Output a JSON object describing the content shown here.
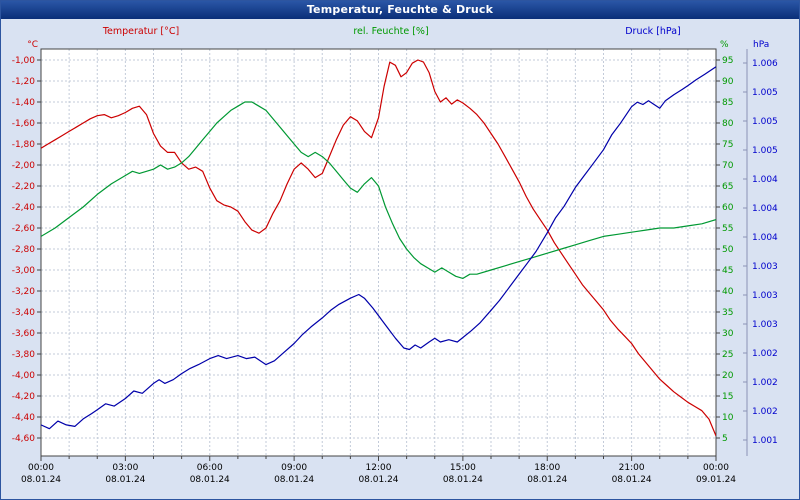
{
  "window": {
    "title": "Temperatur, Feuchte & Druck"
  },
  "chart_data": {
    "type": "line",
    "title": "Temperatur, Feuchte & Druck",
    "xlabel": "",
    "ylabel": "",
    "grid": true,
    "legend_position": "top",
    "series_headers": [
      {
        "label": "Temperatur [°C]",
        "color": "#cc0000"
      },
      {
        "label": "rel. Feuchte [%]",
        "color": "#009900"
      },
      {
        "label": "Druck [hPa]",
        "color": "#0000cc"
      }
    ],
    "axes": {
      "left": {
        "unit": "°C",
        "color": "#cc0000",
        "tick_top_value": -1.0,
        "tick_step": 0.2,
        "ticks": [
          "-1,00",
          "-1,20",
          "-1,40",
          "-1,60",
          "-1,80",
          "-2,00",
          "-2,20",
          "-2,40",
          "-2,60",
          "-2,80",
          "-3,00",
          "-3,20",
          "-3,40",
          "-3,60",
          "-3,80",
          "-4,00",
          "-4,20",
          "-4,40",
          "-4,60"
        ]
      },
      "humidity": {
        "unit": "%",
        "color": "#009900",
        "tick_top_value": 95,
        "tick_step": 5,
        "ticks": [
          "95",
          "90",
          "85",
          "80",
          "75",
          "70",
          "65",
          "60",
          "55",
          "50",
          "45",
          "40",
          "35",
          "30",
          "25",
          "20",
          "15",
          "10",
          "5"
        ]
      },
      "pressure": {
        "unit": "hPa",
        "color": "#0000cc",
        "top_value": 1006.0,
        "bottom_value": 1001.0,
        "labels": [
          "1.006",
          "1.005",
          "1.005",
          "1.005",
          "1.004",
          "1.004",
          "1.004",
          "1.003",
          "1.003",
          "1.003",
          "1.002",
          "1.002",
          "1.002",
          "1.001"
        ]
      },
      "x": {
        "hours_total": 24,
        "gridline_every_hours": 1,
        "label_every_hours": 3,
        "times": [
          "00:00",
          "03:00",
          "06:00",
          "09:00",
          "12:00",
          "15:00",
          "18:00",
          "21:00",
          "00:00"
        ],
        "dates": [
          "08.01.24",
          "08.01.24",
          "08.01.24",
          "08.01.24",
          "08.01.24",
          "08.01.24",
          "08.01.24",
          "08.01.24",
          "09.01.24"
        ]
      }
    },
    "series": [
      {
        "name": "Temperatur",
        "axis": "left",
        "color": "#cc0000",
        "points": [
          [
            0,
            -1.84
          ],
          [
            0.25,
            -1.8
          ],
          [
            0.5,
            -1.76
          ],
          [
            0.75,
            -1.72
          ],
          [
            1,
            -1.68
          ],
          [
            1.25,
            -1.64
          ],
          [
            1.5,
            -1.6
          ],
          [
            1.75,
            -1.56
          ],
          [
            2,
            -1.53
          ],
          [
            2.25,
            -1.52
          ],
          [
            2.5,
            -1.55
          ],
          [
            2.75,
            -1.53
          ],
          [
            3,
            -1.5
          ],
          [
            3.25,
            -1.46
          ],
          [
            3.5,
            -1.44
          ],
          [
            3.75,
            -1.52
          ],
          [
            4,
            -1.7
          ],
          [
            4.25,
            -1.82
          ],
          [
            4.5,
            -1.88
          ],
          [
            4.75,
            -1.88
          ],
          [
            5,
            -1.98
          ],
          [
            5.25,
            -2.04
          ],
          [
            5.5,
            -2.02
          ],
          [
            5.75,
            -2.06
          ],
          [
            6,
            -2.22
          ],
          [
            6.25,
            -2.34
          ],
          [
            6.5,
            -2.38
          ],
          [
            6.75,
            -2.4
          ],
          [
            7,
            -2.44
          ],
          [
            7.25,
            -2.54
          ],
          [
            7.5,
            -2.62
          ],
          [
            7.75,
            -2.65
          ],
          [
            8,
            -2.6
          ],
          [
            8.25,
            -2.46
          ],
          [
            8.5,
            -2.34
          ],
          [
            8.75,
            -2.18
          ],
          [
            9,
            -2.04
          ],
          [
            9.25,
            -1.98
          ],
          [
            9.5,
            -2.04
          ],
          [
            9.75,
            -2.12
          ],
          [
            10,
            -2.08
          ],
          [
            10.25,
            -1.92
          ],
          [
            10.5,
            -1.76
          ],
          [
            10.75,
            -1.62
          ],
          [
            11,
            -1.54
          ],
          [
            11.25,
            -1.58
          ],
          [
            11.5,
            -1.68
          ],
          [
            11.75,
            -1.74
          ],
          [
            12,
            -1.55
          ],
          [
            12.2,
            -1.25
          ],
          [
            12.4,
            -1.02
          ],
          [
            12.6,
            -1.05
          ],
          [
            12.8,
            -1.16
          ],
          [
            13,
            -1.12
          ],
          [
            13.2,
            -1.03
          ],
          [
            13.4,
            -1.0
          ],
          [
            13.6,
            -1.02
          ],
          [
            13.8,
            -1.12
          ],
          [
            14,
            -1.3
          ],
          [
            14.2,
            -1.4
          ],
          [
            14.4,
            -1.36
          ],
          [
            14.6,
            -1.42
          ],
          [
            14.8,
            -1.38
          ],
          [
            15,
            -1.41
          ],
          [
            15.25,
            -1.46
          ],
          [
            15.5,
            -1.52
          ],
          [
            15.75,
            -1.6
          ],
          [
            16,
            -1.7
          ],
          [
            16.25,
            -1.8
          ],
          [
            16.5,
            -1.92
          ],
          [
            16.75,
            -2.04
          ],
          [
            17,
            -2.16
          ],
          [
            17.25,
            -2.3
          ],
          [
            17.5,
            -2.42
          ],
          [
            17.75,
            -2.52
          ],
          [
            18,
            -2.62
          ],
          [
            18.25,
            -2.74
          ],
          [
            18.5,
            -2.84
          ],
          [
            18.75,
            -2.94
          ],
          [
            19,
            -3.04
          ],
          [
            19.25,
            -3.14
          ],
          [
            19.5,
            -3.22
          ],
          [
            19.75,
            -3.3
          ],
          [
            20,
            -3.38
          ],
          [
            20.25,
            -3.48
          ],
          [
            20.5,
            -3.56
          ],
          [
            20.75,
            -3.63
          ],
          [
            21,
            -3.7
          ],
          [
            21.25,
            -3.8
          ],
          [
            21.5,
            -3.88
          ],
          [
            21.75,
            -3.96
          ],
          [
            22,
            -4.04
          ],
          [
            22.25,
            -4.1
          ],
          [
            22.5,
            -4.16
          ],
          [
            22.75,
            -4.21
          ],
          [
            23,
            -4.26
          ],
          [
            23.25,
            -4.3
          ],
          [
            23.5,
            -4.34
          ],
          [
            23.75,
            -4.42
          ],
          [
            24,
            -4.58
          ]
        ]
      },
      {
        "name": "rel. Feuchte",
        "axis": "humidity",
        "color": "#009933",
        "points": [
          [
            0,
            53
          ],
          [
            0.5,
            55
          ],
          [
            1,
            57.5
          ],
          [
            1.5,
            60
          ],
          [
            2,
            63
          ],
          [
            2.5,
            65.5
          ],
          [
            3,
            67.5
          ],
          [
            3.25,
            68.5
          ],
          [
            3.5,
            68
          ],
          [
            3.75,
            68.5
          ],
          [
            4,
            69
          ],
          [
            4.25,
            70
          ],
          [
            4.5,
            69
          ],
          [
            4.75,
            69.5
          ],
          [
            5,
            70.5
          ],
          [
            5.25,
            72
          ],
          [
            5.5,
            74
          ],
          [
            5.75,
            76
          ],
          [
            6,
            78
          ],
          [
            6.25,
            80
          ],
          [
            6.5,
            81.5
          ],
          [
            6.75,
            83
          ],
          [
            7,
            84
          ],
          [
            7.25,
            85
          ],
          [
            7.5,
            85
          ],
          [
            7.75,
            84
          ],
          [
            8,
            83
          ],
          [
            8.25,
            81
          ],
          [
            8.5,
            79
          ],
          [
            8.75,
            77
          ],
          [
            9,
            75
          ],
          [
            9.25,
            73
          ],
          [
            9.5,
            72
          ],
          [
            9.75,
            73
          ],
          [
            10,
            72
          ],
          [
            10.25,
            70.5
          ],
          [
            10.5,
            68.5
          ],
          [
            10.75,
            66.5
          ],
          [
            11,
            64.5
          ],
          [
            11.25,
            63.5
          ],
          [
            11.5,
            65.5
          ],
          [
            11.75,
            67
          ],
          [
            12,
            65
          ],
          [
            12.25,
            60
          ],
          [
            12.5,
            56
          ],
          [
            12.75,
            52.5
          ],
          [
            13,
            50
          ],
          [
            13.25,
            48
          ],
          [
            13.5,
            46.5
          ],
          [
            13.75,
            45.5
          ],
          [
            14,
            44.5
          ],
          [
            14.25,
            45.5
          ],
          [
            14.5,
            44.5
          ],
          [
            14.75,
            43.5
          ],
          [
            15,
            43
          ],
          [
            15.25,
            44
          ],
          [
            15.5,
            44
          ],
          [
            16,
            45
          ],
          [
            16.5,
            46
          ],
          [
            17,
            47
          ],
          [
            17.5,
            48
          ],
          [
            18,
            49
          ],
          [
            18.5,
            50
          ],
          [
            19,
            51
          ],
          [
            19.5,
            52
          ],
          [
            20,
            53
          ],
          [
            20.5,
            53.5
          ],
          [
            21,
            54
          ],
          [
            21.5,
            54.5
          ],
          [
            22,
            55
          ],
          [
            22.5,
            55
          ],
          [
            23,
            55.5
          ],
          [
            23.5,
            56
          ],
          [
            24,
            57
          ]
        ]
      },
      {
        "name": "Druck",
        "axis": "pressure",
        "color": "#0000aa",
        "points": [
          [
            0,
            1001.2
          ],
          [
            0.3,
            1001.15
          ],
          [
            0.6,
            1001.25
          ],
          [
            0.9,
            1001.2
          ],
          [
            1.2,
            1001.18
          ],
          [
            1.5,
            1001.28
          ],
          [
            1.8,
            1001.35
          ],
          [
            2,
            1001.4
          ],
          [
            2.3,
            1001.48
          ],
          [
            2.6,
            1001.45
          ],
          [
            3,
            1001.55
          ],
          [
            3.3,
            1001.65
          ],
          [
            3.6,
            1001.62
          ],
          [
            4,
            1001.75
          ],
          [
            4.2,
            1001.8
          ],
          [
            4.4,
            1001.75
          ],
          [
            4.7,
            1001.8
          ],
          [
            5,
            1001.88
          ],
          [
            5.3,
            1001.95
          ],
          [
            5.6,
            1002.0
          ],
          [
            6,
            1002.08
          ],
          [
            6.3,
            1002.12
          ],
          [
            6.6,
            1002.08
          ],
          [
            7,
            1002.12
          ],
          [
            7.3,
            1002.08
          ],
          [
            7.6,
            1002.1
          ],
          [
            8,
            1002.0
          ],
          [
            8.3,
            1002.05
          ],
          [
            8.6,
            1002.15
          ],
          [
            9,
            1002.28
          ],
          [
            9.3,
            1002.4
          ],
          [
            9.6,
            1002.5
          ],
          [
            10,
            1002.62
          ],
          [
            10.3,
            1002.72
          ],
          [
            10.6,
            1002.8
          ],
          [
            11,
            1002.88
          ],
          [
            11.3,
            1002.93
          ],
          [
            11.5,
            1002.88
          ],
          [
            11.8,
            1002.75
          ],
          [
            12,
            1002.65
          ],
          [
            12.3,
            1002.5
          ],
          [
            12.6,
            1002.35
          ],
          [
            12.9,
            1002.22
          ],
          [
            13.1,
            1002.2
          ],
          [
            13.3,
            1002.26
          ],
          [
            13.5,
            1002.22
          ],
          [
            13.8,
            1002.3
          ],
          [
            14,
            1002.35
          ],
          [
            14.2,
            1002.3
          ],
          [
            14.5,
            1002.33
          ],
          [
            14.8,
            1002.3
          ],
          [
            15,
            1002.36
          ],
          [
            15.3,
            1002.45
          ],
          [
            15.6,
            1002.55
          ],
          [
            16,
            1002.72
          ],
          [
            16.3,
            1002.85
          ],
          [
            16.6,
            1003.0
          ],
          [
            17,
            1003.2
          ],
          [
            17.3,
            1003.35
          ],
          [
            17.6,
            1003.5
          ],
          [
            18,
            1003.75
          ],
          [
            18.3,
            1003.95
          ],
          [
            18.6,
            1004.1
          ],
          [
            19,
            1004.35
          ],
          [
            19.3,
            1004.5
          ],
          [
            19.6,
            1004.65
          ],
          [
            20,
            1004.85
          ],
          [
            20.3,
            1005.05
          ],
          [
            20.6,
            1005.2
          ],
          [
            21,
            1005.42
          ],
          [
            21.2,
            1005.48
          ],
          [
            21.4,
            1005.45
          ],
          [
            21.6,
            1005.5
          ],
          [
            21.8,
            1005.45
          ],
          [
            22,
            1005.4
          ],
          [
            22.2,
            1005.5
          ],
          [
            22.5,
            1005.58
          ],
          [
            22.8,
            1005.65
          ],
          [
            23,
            1005.7
          ],
          [
            23.3,
            1005.78
          ],
          [
            23.6,
            1005.85
          ],
          [
            24,
            1005.95
          ]
        ]
      }
    ]
  }
}
